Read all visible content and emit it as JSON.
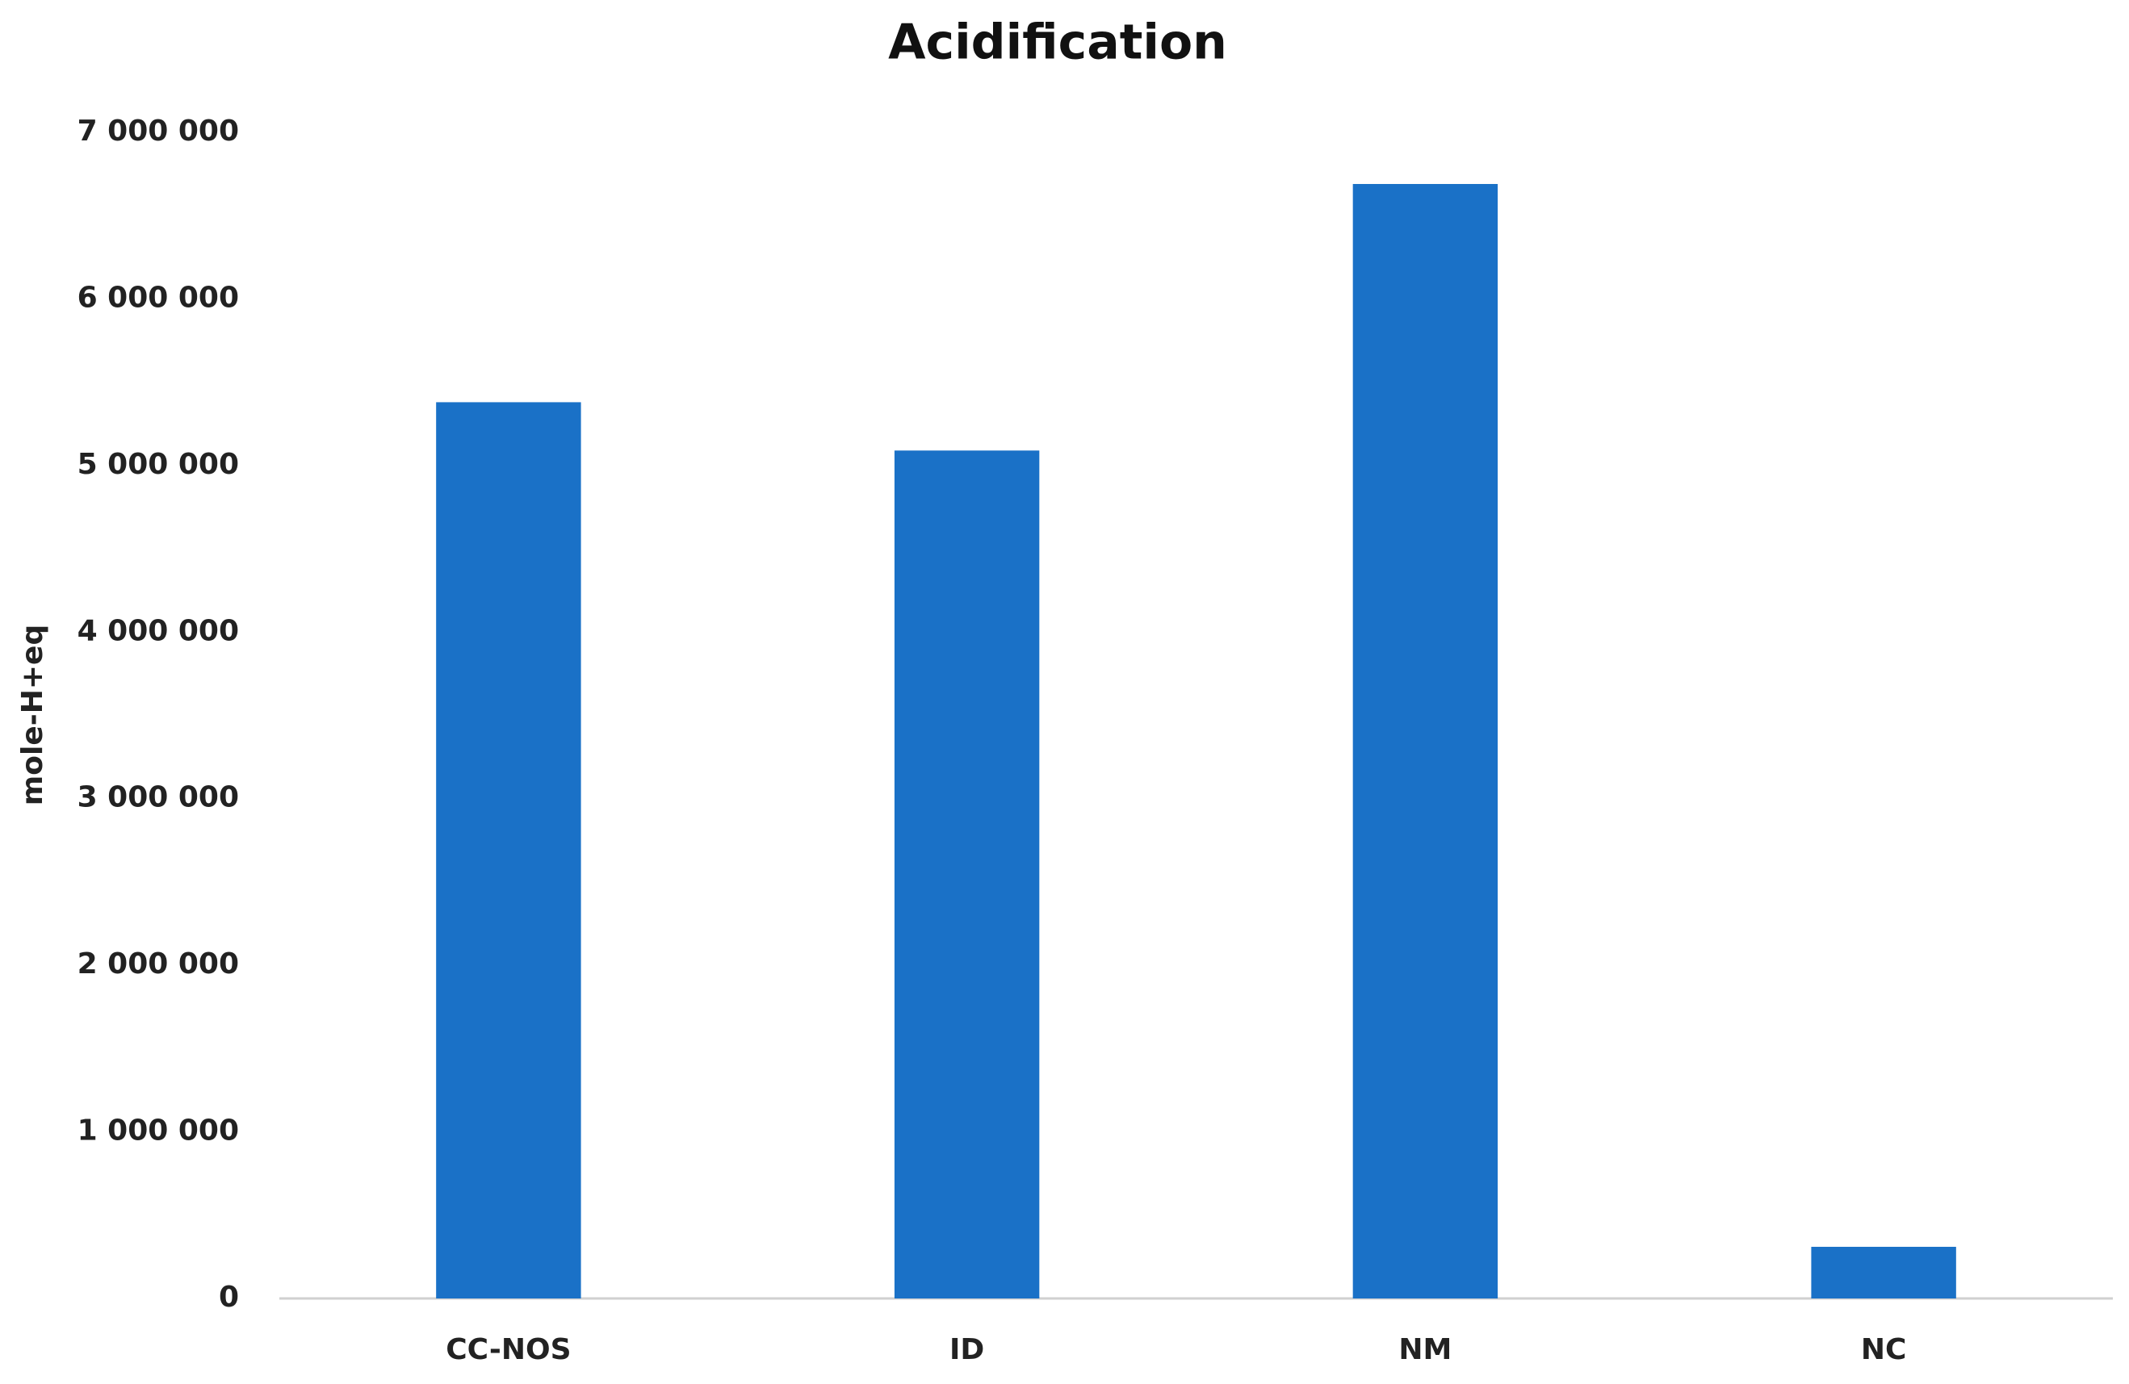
{
  "chart_data": {
    "type": "bar",
    "title": "Acidification",
    "y_label": "mole-H+eq",
    "categories": [
      "CC-NOS",
      "ID",
      "NM",
      "NC"
    ],
    "values": [
      5380000,
      5090000,
      6690000,
      310000
    ],
    "color": "#1a71c7",
    "ylim": [
      0,
      7000000
    ],
    "yticks": [
      0,
      {
        "value": 1000000,
        "label": "1 000 000"
      },
      {
        "value": 2000000,
        "label": "2 000 000"
      },
      {
        "value": 3000000,
        "label": "3 000 000"
      },
      {
        "value": 4000000,
        "label": "4 000 000"
      },
      {
        "value": 5000000,
        "label": "5 000 000"
      },
      {
        "value": 6000000,
        "label": "6 000 000"
      },
      {
        "value": 7000000,
        "label": "7 000 000"
      }
    ],
    "grid": false
  }
}
